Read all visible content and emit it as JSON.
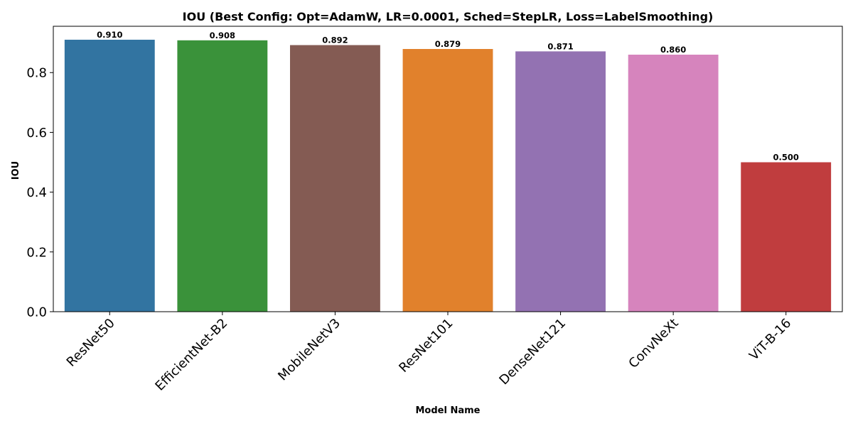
{
  "chart_data": {
    "type": "bar",
    "title": "IOU (Best Config: Opt=AdamW, LR=0.0001, Sched=StepLR, Loss=LabelSmoothing)",
    "xlabel": "Model Name",
    "ylabel": "IOU",
    "categories": [
      "ResNet50",
      "EfficientNet-B2",
      "MobileNetV3",
      "ResNet101",
      "DenseNet121",
      "ConvNeXt",
      "ViT-B-16"
    ],
    "values": [
      0.91,
      0.908,
      0.892,
      0.879,
      0.871,
      0.86,
      0.5
    ],
    "data_labels": [
      "0.910",
      "0.908",
      "0.892",
      "0.879",
      "0.871",
      "0.860",
      "0.500"
    ],
    "colors": [
      "#3274a1",
      "#3a923a",
      "#845b53",
      "#e1812c",
      "#9372b2",
      "#d684bd",
      "#c03d3e"
    ],
    "ylim": [
      0,
      0.955
    ],
    "yticks": [
      0.0,
      0.2,
      0.4,
      0.6,
      0.8
    ],
    "ytick_labels": [
      "0.0",
      "0.2",
      "0.4",
      "0.6",
      "0.8"
    ],
    "grid": false,
    "legend": "none"
  }
}
